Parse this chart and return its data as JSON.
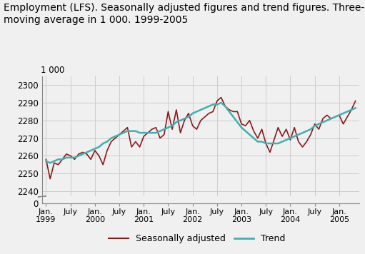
{
  "title": "Employment (LFS). Seasonally adjusted figures and trend figures. Three-month\nmoving average in 1 000. 1999-2005",
  "ylabel_top": "1 000",
  "seasonally_adjusted": [
    2258,
    2247,
    2256,
    2255,
    2258,
    2261,
    2260,
    2258,
    2261,
    2262,
    2261,
    2258,
    2263,
    2260,
    2255,
    2263,
    2268,
    2270,
    2272,
    2274,
    2276,
    2265,
    2268,
    2265,
    2271,
    2273,
    2275,
    2276,
    2270,
    2272,
    2285,
    2275,
    2286,
    2273,
    2280,
    2284,
    2277,
    2275,
    2280,
    2282,
    2284,
    2285,
    2291,
    2293,
    2288,
    2286,
    2285,
    2285,
    2278,
    2277,
    2280,
    2274,
    2270,
    2275,
    2267,
    2262,
    2269,
    2276,
    2271,
    2275,
    2269,
    2276,
    2268,
    2265,
    2268,
    2272,
    2278,
    2275,
    2281,
    2283,
    2281,
    2282,
    2283,
    2278,
    2282,
    2286,
    2291
  ],
  "trend": [
    2257,
    2256,
    2257,
    2258,
    2258,
    2259,
    2259,
    2259,
    2260,
    2261,
    2262,
    2263,
    2264,
    2265,
    2267,
    2268,
    2270,
    2271,
    2272,
    2273,
    2274,
    2274,
    2274,
    2273,
    2273,
    2273,
    2273,
    2273,
    2274,
    2275,
    2276,
    2277,
    2279,
    2280,
    2281,
    2282,
    2284,
    2285,
    2286,
    2287,
    2288,
    2289,
    2289,
    2290,
    2288,
    2285,
    2282,
    2279,
    2276,
    2274,
    2272,
    2270,
    2268,
    2268,
    2267,
    2267,
    2267,
    2267,
    2268,
    2269,
    2270,
    2271,
    2272,
    2273,
    2274,
    2275,
    2277,
    2278,
    2279,
    2280,
    2281,
    2282,
    2283,
    2284,
    2285,
    2286,
    2287
  ],
  "sa_color": "#8B1A1A",
  "trend_color": "#40B0B0",
  "background_color": "#f0f0f0",
  "plot_bg_color": "#f0f0f0",
  "upper_yticks": [
    2240,
    2250,
    2260,
    2270,
    2280,
    2290,
    2300
  ],
  "upper_ylim": [
    2237,
    2305
  ],
  "lower_yticks": [
    0
  ],
  "lower_ylim": [
    0,
    5
  ],
  "grid_color": "#cccccc",
  "sa_label": "Seasonally adjusted",
  "trend_label": "Trend",
  "title_fontsize": 10,
  "axis_fontsize": 8.5,
  "legend_fontsize": 9
}
